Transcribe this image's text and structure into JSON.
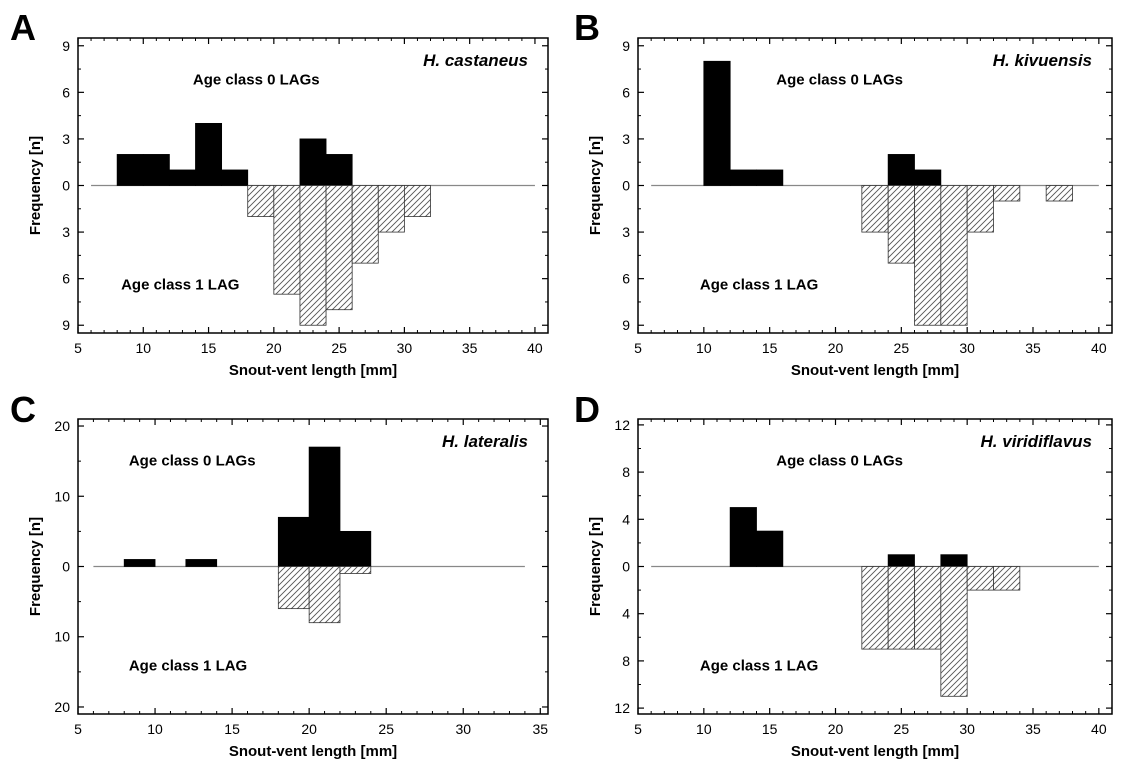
{
  "chart_data": [
    {
      "type": "bar",
      "panel": "A",
      "species": "H. castaneus",
      "label_top": "Age class 0 LAGs",
      "label_bottom": "Age class 1 LAG",
      "xlabel": "Snout-vent length [mm]",
      "ylabel": "Frequency [n]",
      "xlim": [
        5,
        41
      ],
      "xticks": [
        5,
        10,
        15,
        20,
        25,
        30,
        35,
        40
      ],
      "ylim": [
        -9.5,
        9.5
      ],
      "yticks": [
        -9,
        -6,
        -3,
        0,
        3,
        6,
        9
      ],
      "ytick_labels": [
        "9",
        "6",
        "3",
        "0",
        "3",
        "6",
        "9"
      ],
      "baseline": [
        6,
        40
      ],
      "bin_width": 2,
      "series": [
        {
          "name": "Age class 0 LAGs",
          "x": [
            8,
            10,
            12,
            14,
            16,
            22,
            24
          ],
          "values": [
            2,
            2,
            1,
            4,
            1,
            3,
            2
          ]
        },
        {
          "name": "Age class 1 LAG",
          "x": [
            18,
            20,
            22,
            24,
            26,
            28,
            30
          ],
          "values": [
            2,
            7,
            9,
            8,
            5,
            3,
            2
          ]
        }
      ]
    },
    {
      "type": "bar",
      "panel": "B",
      "species": "H. kivuensis",
      "label_top": "Age class 0 LAGs",
      "label_bottom": "Age class 1 LAG",
      "xlabel": "Snout-vent length [mm]",
      "ylabel": "Frequency [n]",
      "xlim": [
        5,
        41
      ],
      "xticks": [
        5,
        10,
        15,
        20,
        25,
        30,
        35,
        40
      ],
      "ylim": [
        -9.5,
        9.5
      ],
      "yticks": [
        -9,
        -6,
        -3,
        0,
        3,
        6,
        9
      ],
      "ytick_labels": [
        "9",
        "6",
        "3",
        "0",
        "3",
        "6",
        "9"
      ],
      "baseline": [
        6,
        40
      ],
      "bin_width": 2,
      "series": [
        {
          "name": "Age class 0 LAGs",
          "x": [
            10,
            12,
            14,
            24,
            26
          ],
          "values": [
            8,
            1,
            1,
            2,
            1
          ]
        },
        {
          "name": "Age class 1 LAG",
          "x": [
            22,
            24,
            26,
            28,
            30,
            32,
            36
          ],
          "values": [
            3,
            5,
            9,
            9,
            3,
            1,
            1
          ]
        }
      ]
    },
    {
      "type": "bar",
      "panel": "C",
      "species": "H. lateralis",
      "label_top": "Age class 0 LAGs",
      "label_bottom": "Age class 1 LAG",
      "xlabel": "Snout-vent length [mm]",
      "ylabel": "Frequency [n]",
      "xlim": [
        5,
        35.5
      ],
      "xticks": [
        5,
        10,
        15,
        20,
        25,
        30,
        35
      ],
      "ylim": [
        -21,
        21
      ],
      "yticks": [
        -20,
        -10,
        0,
        10,
        20
      ],
      "ytick_labels": [
        "20",
        "10",
        "0",
        "10",
        "20"
      ],
      "baseline": [
        6,
        34
      ],
      "bin_width": 2,
      "series": [
        {
          "name": "Age class 0 LAGs",
          "x": [
            8,
            12,
            18,
            20,
            22
          ],
          "values": [
            1,
            1,
            7,
            17,
            5
          ]
        },
        {
          "name": "Age class 1 LAG",
          "x": [
            18,
            20,
            22
          ],
          "values": [
            6,
            8,
            1
          ]
        }
      ]
    },
    {
      "type": "bar",
      "panel": "D",
      "species": "H. viridiflavus",
      "label_top": "Age class 0 LAGs",
      "label_bottom": "Age class 1 LAG",
      "xlabel": "Snout-vent length [mm]",
      "ylabel": "Frequency [n]",
      "xlim": [
        5,
        41
      ],
      "xticks": [
        5,
        10,
        15,
        20,
        25,
        30,
        35,
        40
      ],
      "ylim": [
        -12.5,
        12.5
      ],
      "yticks": [
        -12,
        -8,
        -4,
        0,
        4,
        8,
        12
      ],
      "ytick_labels": [
        "12",
        "8",
        "4",
        "0",
        "4",
        "8",
        "12"
      ],
      "baseline": [
        6,
        40
      ],
      "bin_width": 2,
      "series": [
        {
          "name": "Age class 0 LAGs",
          "x": [
            12,
            14,
            24,
            28
          ],
          "values": [
            5,
            3,
            1,
            1
          ]
        },
        {
          "name": "Age class 1 LAG",
          "x": [
            22,
            24,
            26,
            28,
            30,
            32
          ],
          "values": [
            7,
            7,
            7,
            11,
            2,
            2
          ]
        }
      ]
    }
  ],
  "colors": {
    "positive_fill": "#000000",
    "negative_fill": "#ffffff",
    "hatch": "#555555",
    "baseline": "#888888"
  }
}
